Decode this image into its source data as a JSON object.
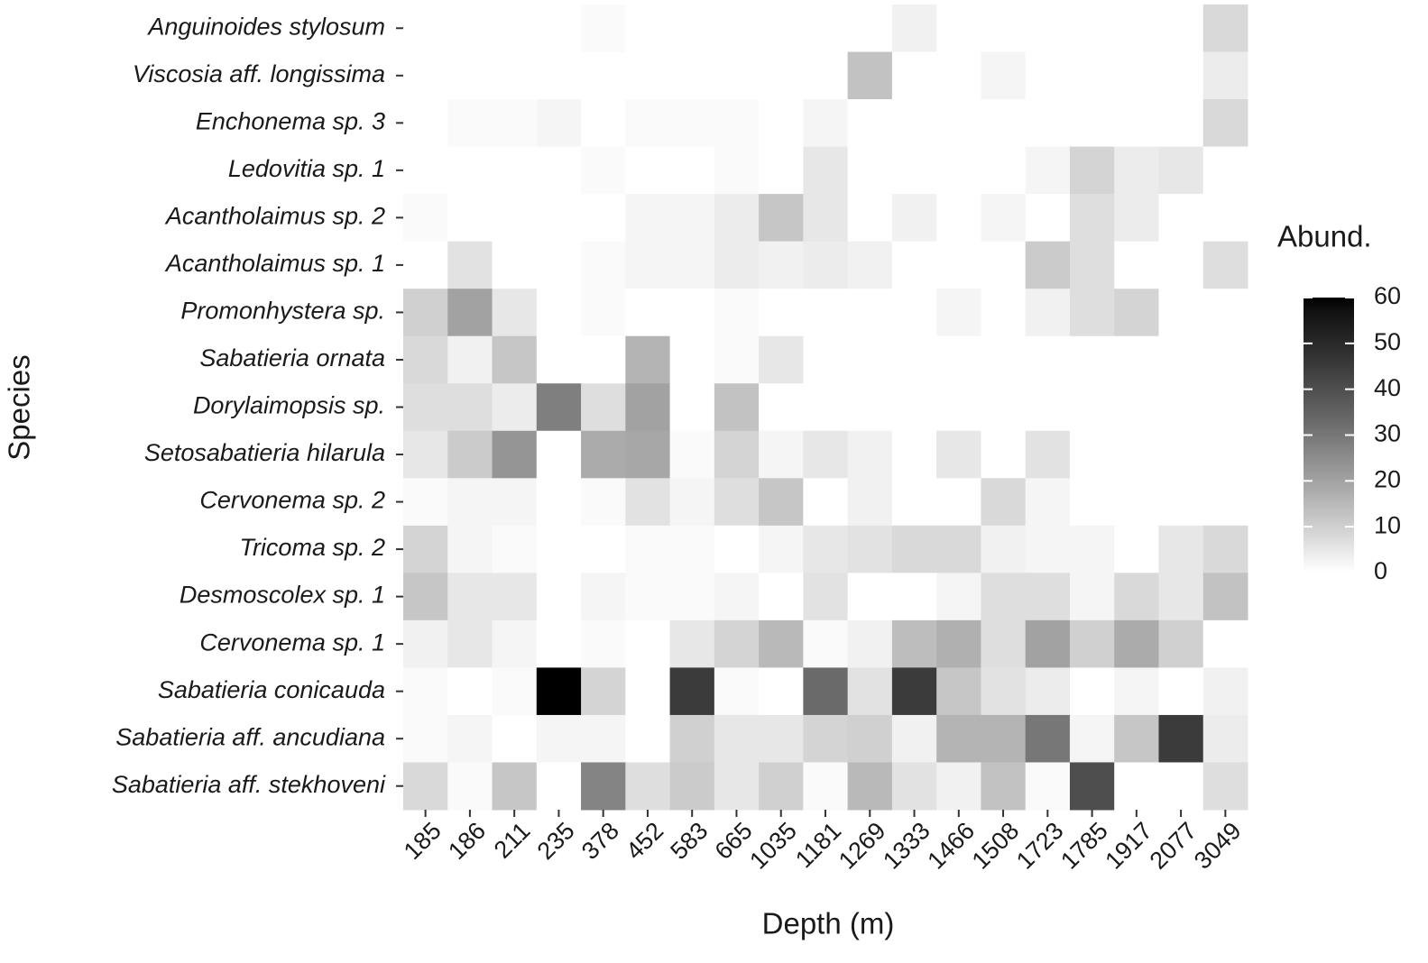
{
  "chart_data": {
    "type": "heatmap",
    "x_label": "Depth (m)",
    "y_label": "Species",
    "categories": [
      "185",
      "186",
      "211",
      "235",
      "378",
      "452",
      "583",
      "665",
      "1035",
      "1181",
      "1269",
      "1333",
      "1466",
      "1508",
      "1723",
      "1785",
      "1917",
      "2077",
      "3049"
    ],
    "rows": [
      "Anguinoides stylosum",
      "Viscosia aff. longissima",
      "Enchonema sp. 3",
      "Ledovitia sp. 1",
      "Acantholaimus sp. 2",
      "Acantholaimus sp. 1",
      "Promonhystera sp.",
      "Sabatieria ornata",
      "Dorylaimopsis sp.",
      "Setosabatieria hilarula",
      "Cervonema sp. 2",
      "Tricoma sp. 2",
      "Desmoscolex sp. 1",
      "Cervonema sp. 1",
      "Sabatieria conicauda",
      "Sabatieria aff. ancudiana",
      "Sabatieria aff. stekhoveni"
    ],
    "values": [
      [
        0,
        0,
        0,
        0,
        1,
        0,
        0,
        0,
        0,
        0,
        0,
        3,
        0,
        0,
        0,
        0,
        0,
        0,
        8
      ],
      [
        0,
        0,
        0,
        0,
        0,
        0,
        0,
        0,
        0,
        0,
        13,
        0,
        0,
        2,
        0,
        0,
        0,
        0,
        4
      ],
      [
        0,
        1,
        1,
        2,
        0,
        1,
        1,
        1,
        0,
        2,
        0,
        0,
        0,
        0,
        0,
        0,
        0,
        0,
        8
      ],
      [
        0,
        0,
        0,
        0,
        1,
        0,
        0,
        1,
        0,
        5,
        0,
        0,
        0,
        0,
        2,
        9,
        4,
        5,
        0
      ],
      [
        1,
        0,
        0,
        0,
        0,
        2,
        2,
        4,
        12,
        5,
        0,
        3,
        0,
        2,
        0,
        7,
        4,
        0,
        0
      ],
      [
        0,
        6,
        0,
        0,
        1,
        2,
        2,
        4,
        3,
        4,
        3,
        0,
        0,
        0,
        11,
        7,
        0,
        0,
        7
      ],
      [
        10,
        20,
        5,
        0,
        1,
        0,
        0,
        1,
        0,
        0,
        0,
        0,
        2,
        0,
        3,
        7,
        9,
        0,
        0
      ],
      [
        8,
        3,
        12,
        0,
        0,
        16,
        0,
        1,
        5,
        0,
        0,
        0,
        0,
        0,
        0,
        0,
        0,
        0,
        0
      ],
      [
        7,
        7,
        4,
        28,
        7,
        20,
        0,
        13,
        0,
        0,
        0,
        0,
        0,
        0,
        0,
        0,
        0,
        0,
        0
      ],
      [
        5,
        11,
        23,
        0,
        18,
        19,
        1,
        9,
        2,
        5,
        3,
        0,
        5,
        0,
        6,
        0,
        0,
        0,
        0
      ],
      [
        1,
        2,
        2,
        0,
        1,
        6,
        2,
        7,
        12,
        0,
        3,
        0,
        0,
        8,
        2,
        0,
        0,
        0,
        0
      ],
      [
        9,
        2,
        1,
        0,
        0,
        1,
        1,
        0,
        2,
        5,
        6,
        8,
        8,
        3,
        2,
        2,
        0,
        5,
        8
      ],
      [
        12,
        5,
        5,
        0,
        2,
        1,
        1,
        2,
        0,
        6,
        0,
        0,
        2,
        7,
        7,
        2,
        8,
        5,
        13
      ],
      [
        3,
        5,
        2,
        0,
        1,
        0,
        5,
        9,
        15,
        1,
        3,
        14,
        17,
        7,
        20,
        10,
        18,
        10,
        0
      ],
      [
        1,
        0,
        1,
        60,
        9,
        0,
        45,
        1,
        0,
        33,
        6,
        45,
        12,
        6,
        4,
        0,
        2,
        0,
        3
      ],
      [
        1,
        2,
        0,
        2,
        2,
        0,
        10,
        5,
        5,
        9,
        10,
        3,
        16,
        16,
        30,
        2,
        12,
        45,
        4
      ],
      [
        8,
        1,
        12,
        0,
        27,
        7,
        11,
        5,
        10,
        1,
        15,
        6,
        3,
        13,
        1,
        40,
        0,
        0,
        7
      ]
    ],
    "colorbar": {
      "title": "Abund.",
      "lim": [
        0,
        60
      ],
      "ticks": [
        0,
        10,
        20,
        30,
        40,
        50,
        60
      ]
    }
  }
}
